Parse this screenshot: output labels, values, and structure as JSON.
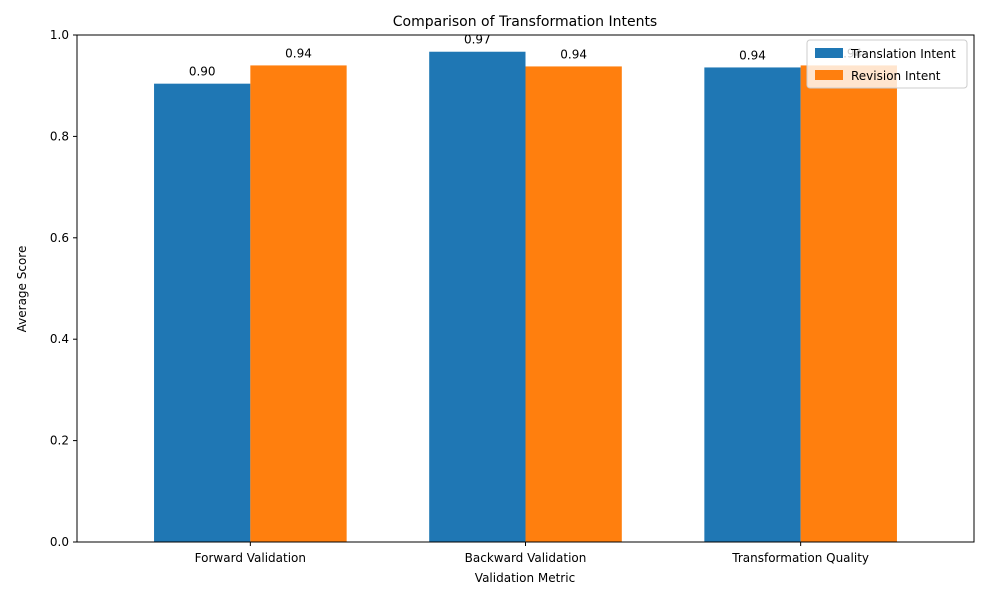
{
  "chart_data": {
    "type": "bar",
    "title": "Comparison of Transformation Intents",
    "xlabel": "Validation Metric",
    "ylabel": "Average Score",
    "categories": [
      "Forward Validation",
      "Backward Validation",
      "Transformation Quality"
    ],
    "series": [
      {
        "name": "Translation Intent",
        "values": [
          0.904,
          0.967,
          0.936
        ],
        "color": "#1f77b4",
        "labels": [
          "0.90",
          "0.97",
          "0.94"
        ]
      },
      {
        "name": "Revision Intent",
        "values": [
          0.94,
          0.938,
          0.94
        ],
        "color": "#ff7f0e",
        "labels": [
          "0.94",
          "0.94",
          "0.94"
        ]
      }
    ],
    "ylim": [
      0,
      1.0
    ],
    "yticks": [
      "0.0",
      "0.2",
      "0.4",
      "0.6",
      "0.8",
      "1.0"
    ],
    "grid": false,
    "legend": "top-right"
  }
}
